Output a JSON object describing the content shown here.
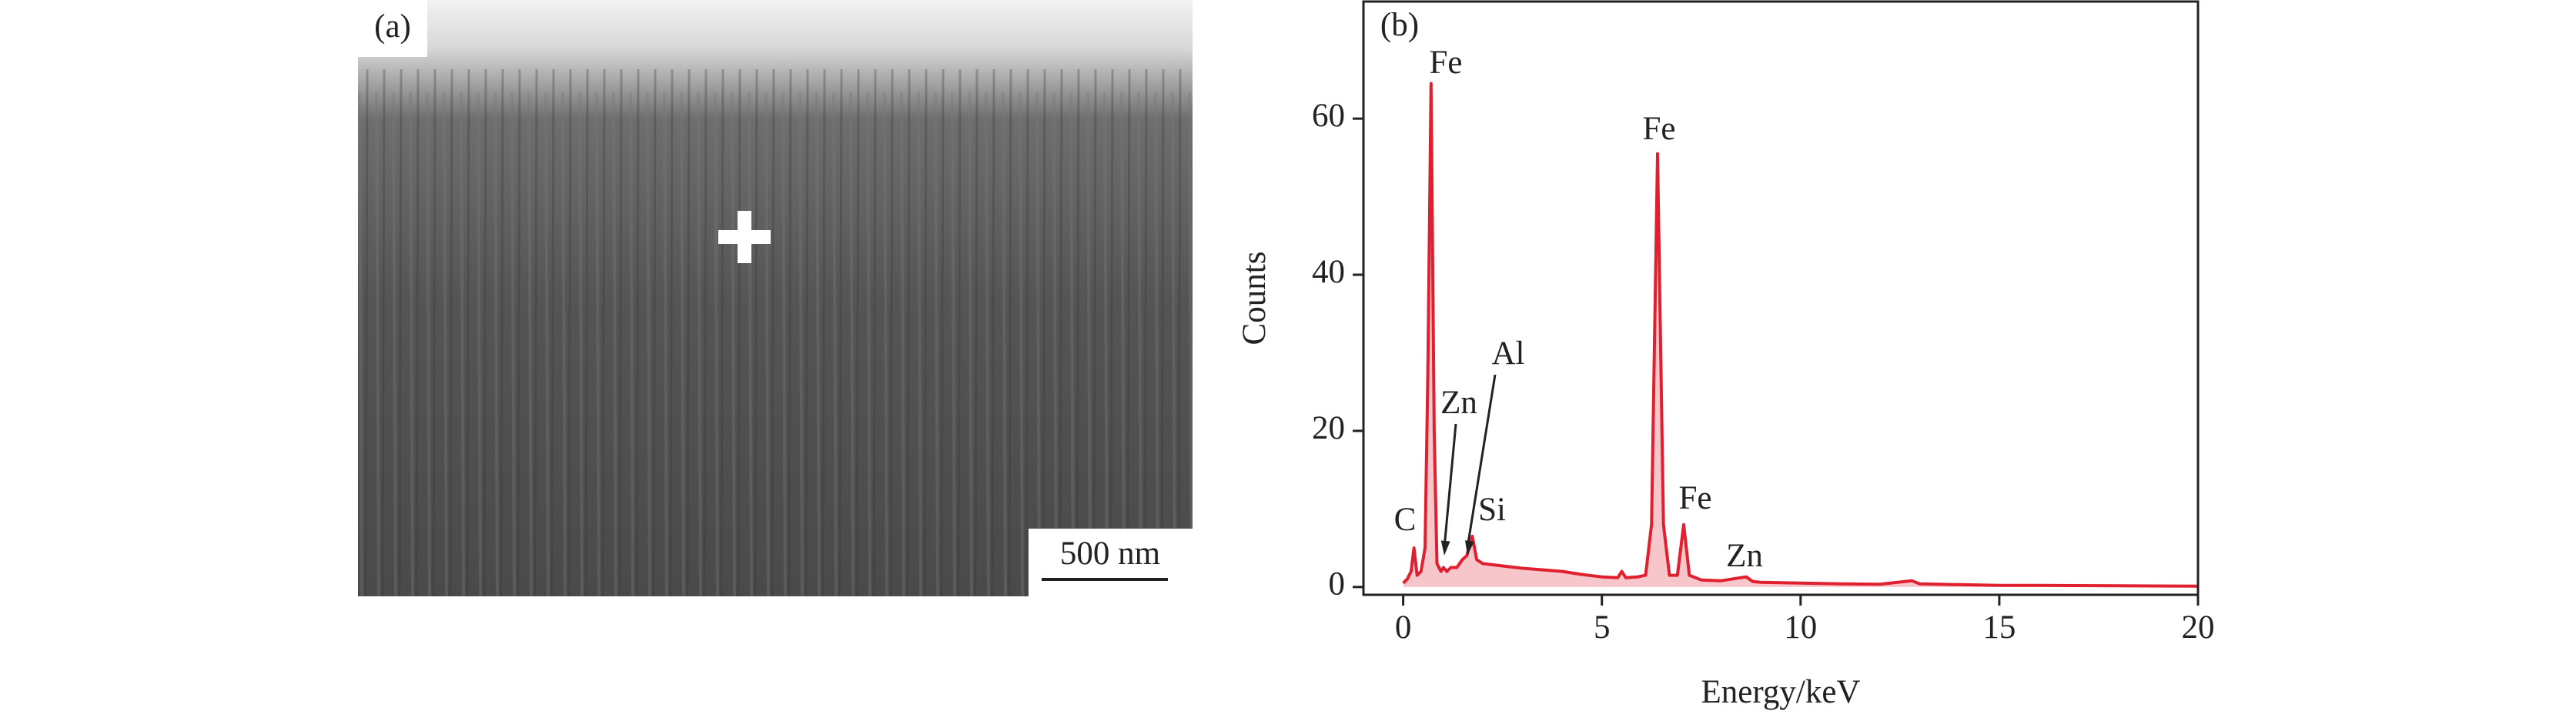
{
  "panel_a": {
    "label": "(a)",
    "scale_bar": "500 nm"
  },
  "chart_data": {
    "type": "line",
    "panel_label": "(b)",
    "xlabel": "Energy/keV",
    "ylabel": "Counts",
    "x": [
      0,
      0.1,
      0.2,
      0.27,
      0.35,
      0.45,
      0.55,
      0.62,
      0.7,
      0.78,
      0.85,
      0.95,
      1.01,
      1.1,
      1.2,
      1.35,
      1.49,
      1.6,
      1.74,
      1.85,
      2,
      2.5,
      3,
      3.5,
      4,
      4.5,
      5,
      5.4,
      5.5,
      5.6,
      5.9,
      6.1,
      6.25,
      6.4,
      6.55,
      6.7,
      6.9,
      7.06,
      7.2,
      7.5,
      8,
      8.63,
      8.8,
      9,
      10,
      11,
      12,
      12.8,
      13,
      14,
      15,
      16,
      18,
      20
    ],
    "values": [
      0.5,
      1,
      2,
      5,
      1.5,
      2,
      5,
      27,
      64.5,
      20,
      3,
      2,
      2.5,
      2,
      2.5,
      2.5,
      3.5,
      4,
      6.5,
      3.5,
      3,
      2.7,
      2.4,
      2.2,
      2,
      1.6,
      1.3,
      1.2,
      2,
      1.2,
      1.3,
      1.5,
      8,
      55.5,
      8,
      1.5,
      1.5,
      8,
      1.5,
      0.9,
      0.8,
      1.3,
      0.7,
      0.6,
      0.5,
      0.4,
      0.35,
      0.8,
      0.4,
      0.3,
      0.2,
      0.2,
      0.15,
      0.1
    ],
    "color": "#e0202e",
    "fill_color": "#f7c6cb",
    "annotations": [
      "C",
      "Fe",
      "Zn",
      "Al",
      "Si",
      "Fe",
      "Fe",
      "Zn"
    ],
    "xlim": [
      -1,
      20
    ],
    "xticks": [
      0,
      5,
      10,
      15,
      20
    ],
    "ylim": [
      -1,
      75
    ],
    "yticks": [
      0,
      20,
      40,
      60
    ]
  }
}
